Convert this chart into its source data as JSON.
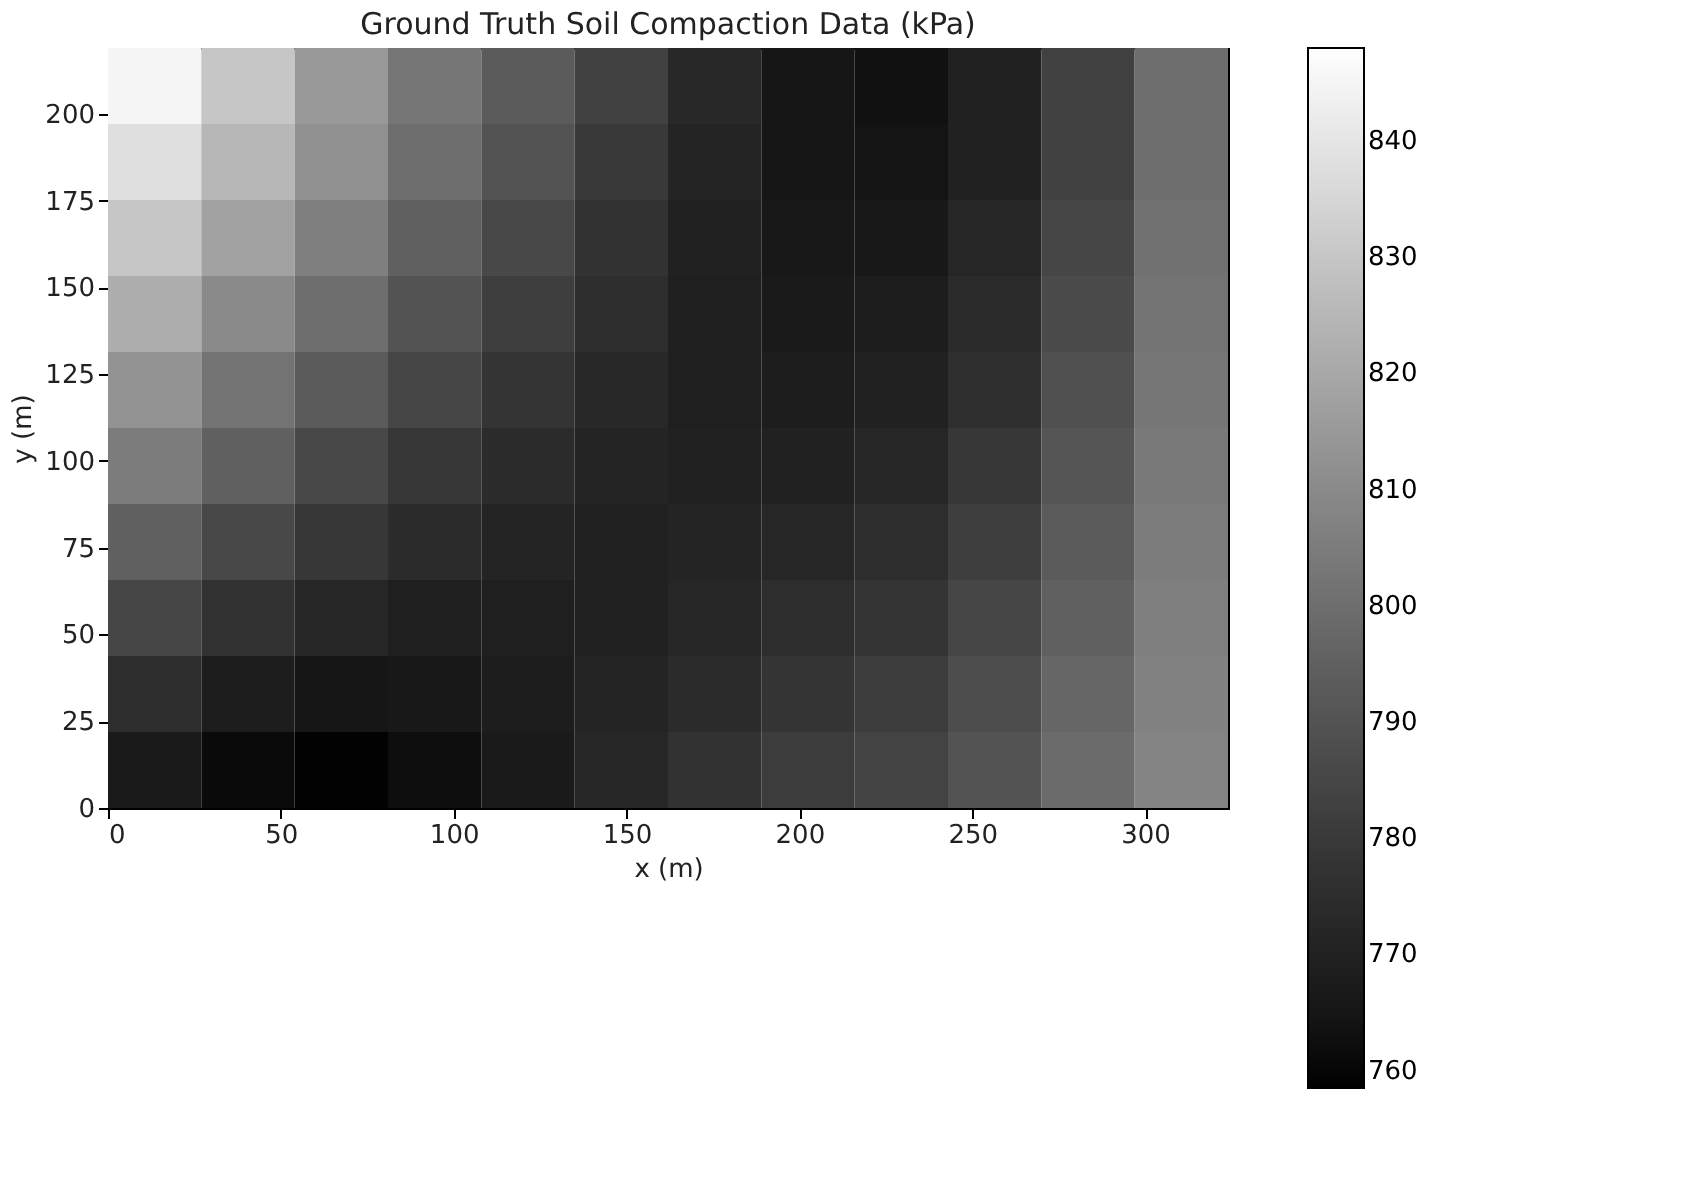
{
  "chart_data": {
    "type": "heatmap",
    "title": "Ground Truth Soil Compaction Data (kPa)",
    "xlabel": "x (m)",
    "ylabel": "y (m)",
    "xlim": [
      0,
      324
    ],
    "xticks": [
      0,
      50,
      100,
      150,
      200,
      250,
      300
    ],
    "ylim": [
      0,
      219
    ],
    "yticks": [
      0,
      25,
      50,
      75,
      100,
      125,
      150,
      175,
      200
    ],
    "clim": [
      758.5,
      848
    ],
    "cticks": [
      760,
      770,
      780,
      790,
      800,
      810,
      820,
      830,
      840
    ],
    "cells": [
      [
        845,
        830,
        815,
        803,
        793,
        783,
        773,
        765,
        763,
        770,
        783,
        800
      ],
      [
        838,
        825,
        812,
        800,
        790,
        780,
        771,
        765,
        764,
        770,
        783,
        800
      ],
      [
        830,
        818,
        806,
        795,
        786,
        777,
        770,
        766,
        766,
        772,
        785,
        801
      ],
      [
        822,
        810,
        800,
        790,
        782,
        775,
        769,
        767,
        768,
        774,
        787,
        802
      ],
      [
        813,
        802,
        793,
        785,
        778,
        773,
        769,
        768,
        770,
        776,
        789,
        803
      ],
      [
        805,
        795,
        786,
        779,
        774,
        771,
        770,
        770,
        772,
        779,
        791,
        804
      ],
      [
        795,
        786,
        779,
        774,
        771,
        770,
        771,
        772,
        775,
        782,
        793,
        805
      ],
      [
        785,
        777,
        772,
        769,
        769,
        770,
        772,
        775,
        778,
        785,
        795,
        806
      ],
      [
        775,
        768,
        765,
        766,
        768,
        771,
        774,
        778,
        781,
        788,
        797,
        807
      ],
      [
        767,
        761,
        759,
        762,
        767,
        772,
        777,
        781,
        784,
        790,
        799,
        808
      ]
    ]
  }
}
